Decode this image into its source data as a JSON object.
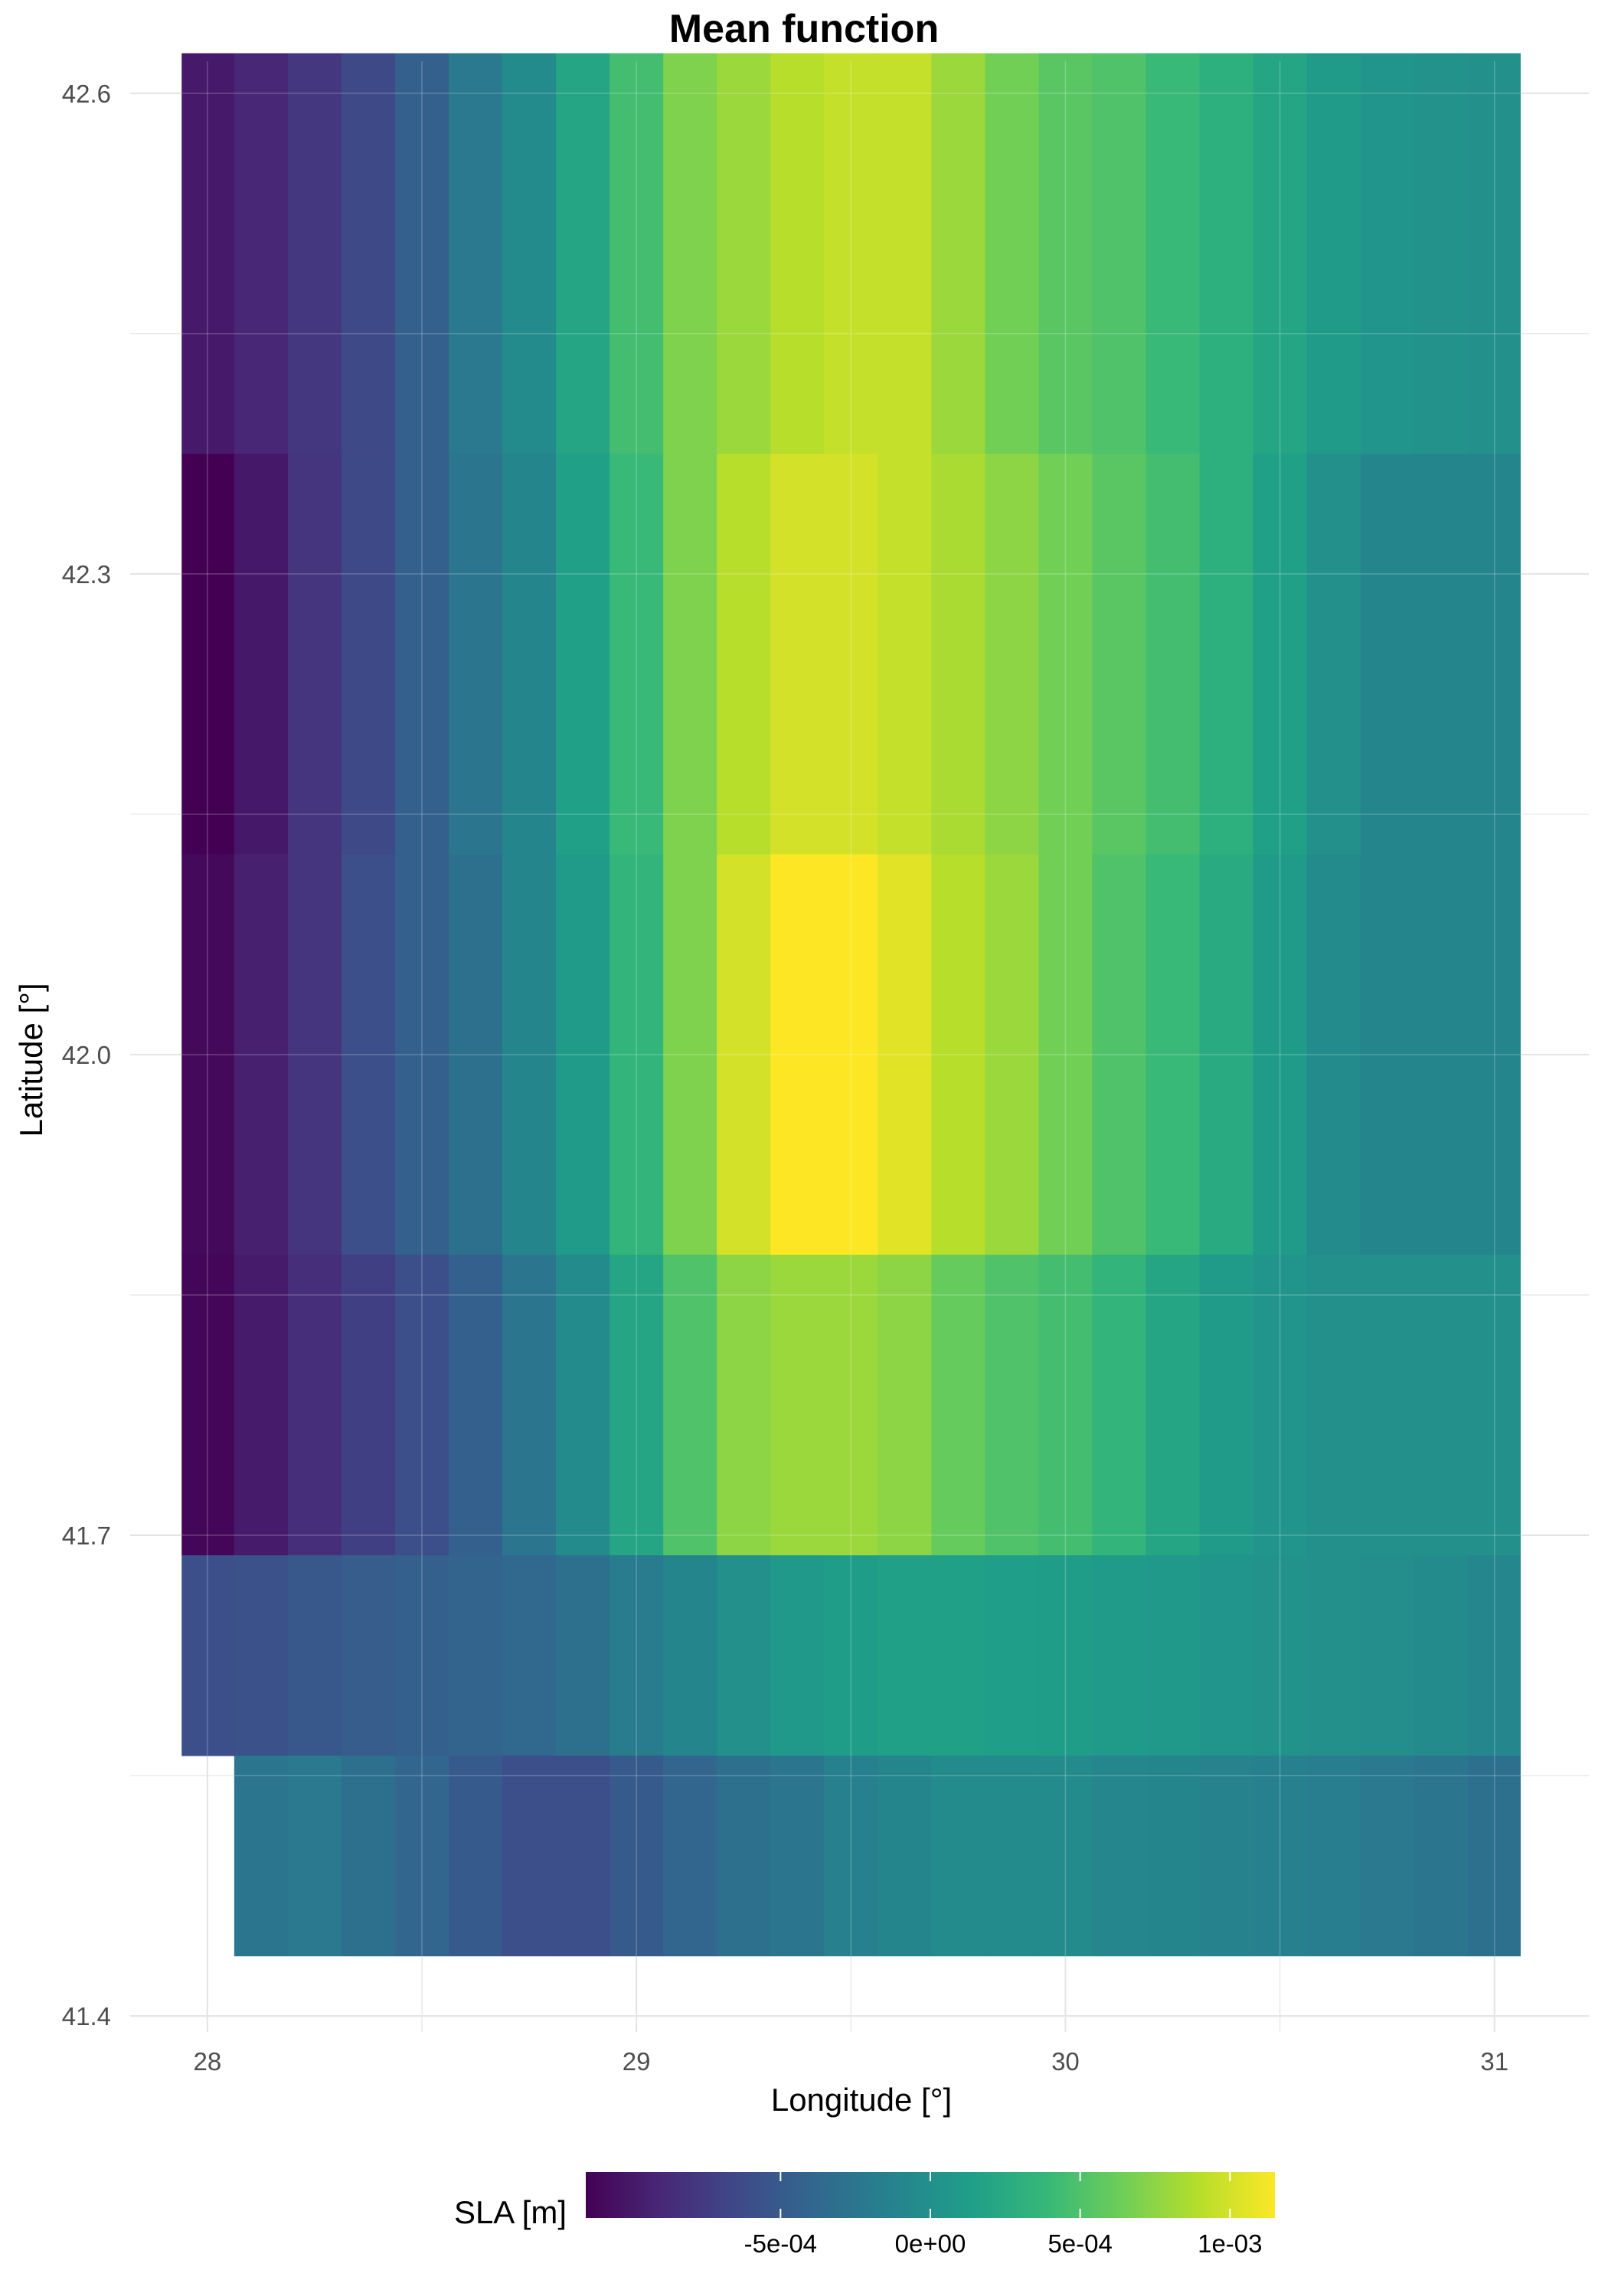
{
  "chart_data": {
    "type": "heatmap",
    "title": "Mean function",
    "xlabel": "Longitude [°]",
    "ylabel": "Latitude [°]",
    "xlim": [
      27.82,
      31.22
    ],
    "ylim": [
      41.39,
      42.62
    ],
    "x_ticks": [
      28,
      29,
      30,
      31
    ],
    "x_tick_labels": [
      "28",
      "29",
      "30",
      "31"
    ],
    "y_ticks": [
      41.4,
      41.7,
      42.0,
      42.3,
      42.6
    ],
    "y_tick_labels": [
      "41.4",
      "41.7",
      "42.0",
      "42.3",
      "42.6"
    ],
    "grid": true,
    "x_centers": [
      28.0,
      28.125,
      28.25,
      28.375,
      28.5,
      28.625,
      28.75,
      28.875,
      29.0,
      29.125,
      29.25,
      29.375,
      29.5,
      29.625,
      29.75,
      29.875,
      30.0,
      30.125,
      30.25,
      30.375,
      30.5,
      30.625,
      30.75,
      30.875,
      31.0
    ],
    "rows": [
      {
        "lat": 42.5,
        "lon_min": 27.94,
        "lon_max": 31.06,
        "values": [
          -0.00099,
          -0.0009,
          -0.00078,
          -0.00065,
          -0.00045,
          -0.00022,
          -5e-05,
          0.0002,
          0.00045,
          0.0007,
          0.0008,
          0.0009,
          0.00095,
          0.00095,
          0.0008,
          0.00065,
          0.00055,
          0.0005,
          0.0004,
          0.0003,
          0.0002,
          0.0001,
          5e-05,
          2e-05,
          0.0
        ]
      },
      {
        "lat": 42.25,
        "lon_min": 27.94,
        "lon_max": 31.06,
        "values": [
          -0.00115,
          -0.001,
          -0.0008,
          -0.00065,
          -0.00045,
          -0.00025,
          -0.0001,
          0.00015,
          0.0004,
          0.0007,
          0.0009,
          0.001,
          0.001,
          0.00095,
          0.00085,
          0.00075,
          0.00065,
          0.00055,
          0.00045,
          0.0003,
          0.00015,
          0.0,
          -0.0001,
          -0.0001,
          -0.0001
        ]
      },
      {
        "lat": 42.0,
        "lon_min": 27.94,
        "lon_max": 31.06,
        "values": [
          -0.0011,
          -0.00095,
          -0.0008,
          -0.0006,
          -0.00045,
          -0.0003,
          -0.0001,
          0.0001,
          0.00035,
          0.0007,
          0.001,
          0.00115,
          0.00115,
          0.00105,
          0.0009,
          0.0008,
          0.00065,
          0.0005,
          0.0004,
          0.00025,
          0.0001,
          -5e-05,
          -0.0001,
          -0.0001,
          -0.0001
        ]
      },
      {
        "lat": 41.75,
        "lon_min": 27.94,
        "lon_max": 31.06,
        "values": [
          -0.00112,
          -0.00098,
          -0.00085,
          -0.00072,
          -0.0006,
          -0.00045,
          -0.00025,
          -5e-05,
          0.0002,
          0.0005,
          0.00075,
          0.0008,
          0.0008,
          0.00075,
          0.0006,
          0.0005,
          0.00045,
          0.00035,
          0.0002,
          0.0001,
          5e-05,
          0.0,
          0.0,
          0.0,
          0.0
        ]
      },
      {
        "lat": 41.625,
        "lon_min": 27.94,
        "lon_max": 31.06,
        "values": [
          -0.0006,
          -0.00058,
          -0.00052,
          -0.00048,
          -0.00045,
          -0.00042,
          -0.00038,
          -0.0003,
          -0.0002,
          -0.0001,
          0.0,
          8e-05,
          0.00012,
          0.00015,
          0.00015,
          0.00013,
          0.00012,
          0.0001,
          8e-05,
          5e-05,
          2e-05,
          0.0,
          -2e-05,
          -5e-05,
          -8e-05
        ]
      },
      {
        "lat": 41.5,
        "lon_min": 28.06,
        "lon_max": 31.06,
        "values": [
          null,
          -0.00025,
          -0.00022,
          -0.0003,
          -0.0004,
          -0.0005,
          -0.0006,
          -0.0006,
          -0.0005,
          -0.0004,
          -0.0003,
          -0.00025,
          -0.00015,
          -0.0001,
          -5e-05,
          -5e-05,
          -5e-05,
          -8e-05,
          -0.0001,
          -0.00012,
          -0.00015,
          -0.00018,
          -0.00022,
          -0.00026,
          -0.0003
        ]
      }
    ],
    "legend": {
      "title": "SLA [m]",
      "position": "bottom",
      "range": [
        -0.00115,
        0.00115
      ],
      "ticks": [
        -0.0005,
        0.0,
        0.0005,
        0.001
      ],
      "tick_labels": [
        "-5e-04",
        "0e+00",
        "5e-04",
        "1e-03"
      ],
      "colormap": "viridis"
    }
  },
  "colors": {
    "background": "#ffffff",
    "grid": "#dedede",
    "viridis": [
      "#440154",
      "#482878",
      "#3e4a89",
      "#31688e",
      "#26828e",
      "#1f9e89",
      "#35b779",
      "#6ece58",
      "#b5de2b",
      "#fde725"
    ]
  }
}
